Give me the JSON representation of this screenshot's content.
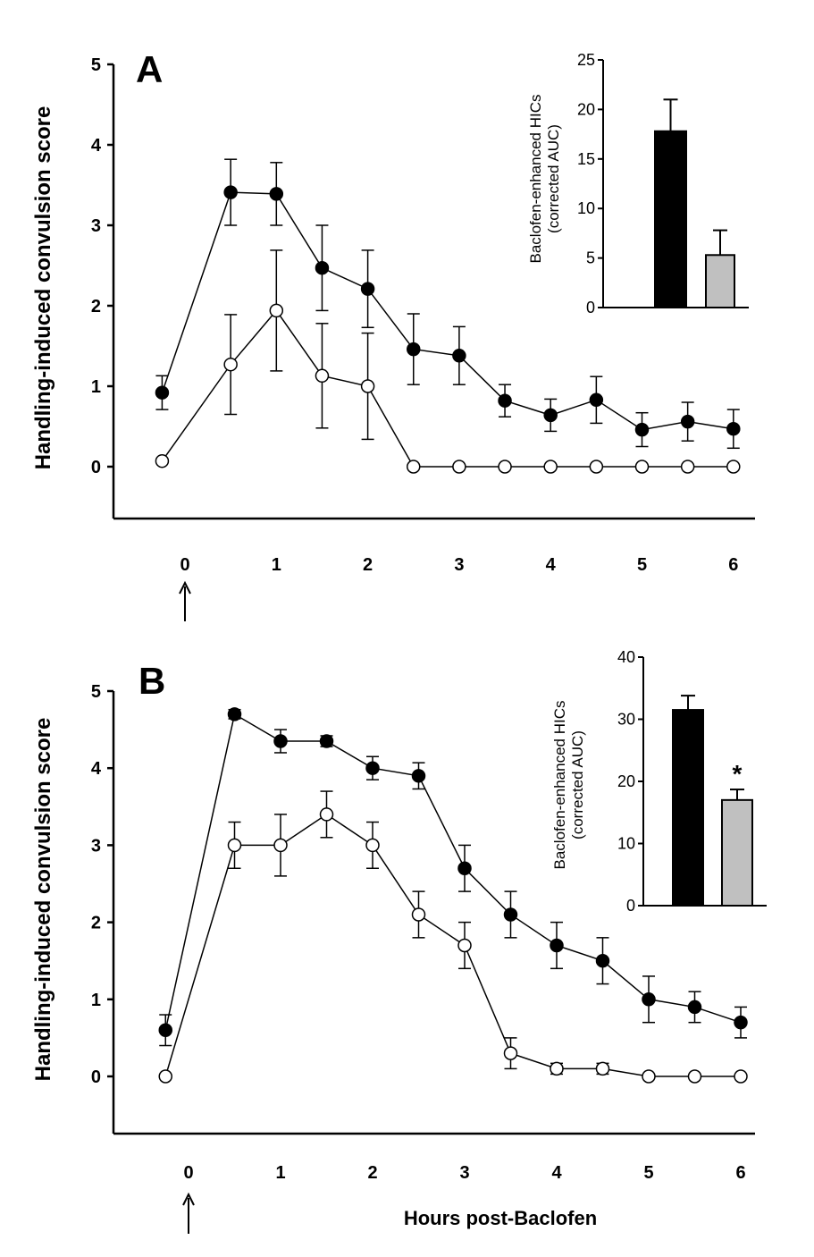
{
  "chart_data": [
    {
      "panel": "A",
      "type": "line",
      "title": "",
      "ylabel": "Handling-induced convulsion score",
      "xlabel": "",
      "ylim": [
        0,
        5
      ],
      "yticks": [
        "0",
        "1",
        "2",
        "3",
        "4",
        "5"
      ],
      "xticks": [
        "0",
        "1",
        "2",
        "3",
        "4",
        "5",
        "6"
      ],
      "x": [
        -0.25,
        0.5,
        1,
        1.5,
        2,
        2.5,
        3,
        3.5,
        4,
        4.5,
        5,
        5.5,
        6
      ],
      "series": [
        {
          "name": "filled",
          "marker": "filled-circle",
          "values": [
            0.92,
            3.41,
            3.39,
            2.47,
            2.21,
            1.46,
            1.38,
            0.82,
            0.64,
            0.83,
            0.46,
            0.56,
            0.47
          ],
          "errors": [
            0.21,
            0.41,
            0.39,
            0.53,
            0.48,
            0.44,
            0.36,
            0.2,
            0.2,
            0.29,
            0.21,
            0.24,
            0.24
          ]
        },
        {
          "name": "open",
          "marker": "open-circle",
          "values": [
            0.07,
            1.27,
            1.94,
            1.13,
            1.0,
            0,
            0,
            0,
            0,
            0,
            0,
            0,
            0
          ],
          "errors": [
            0,
            0.62,
            0.75,
            0.65,
            0.66,
            0,
            0,
            0,
            0,
            0,
            0,
            0,
            0
          ]
        }
      ],
      "arrow_at": 0,
      "inset": {
        "type": "bar",
        "ylabel_line1": "Baclofen-enhanced HICs",
        "ylabel_line2": "(corrected AUC)",
        "ylim": [
          0,
          25
        ],
        "yticks": [
          "0",
          "5",
          "10",
          "15",
          "20",
          "25"
        ],
        "bars": [
          {
            "name": "filled",
            "value": 17.8,
            "error": 3.2,
            "color": "#000000"
          },
          {
            "name": "open",
            "value": 5.3,
            "error": 2.5,
            "color": "#c0c0c0"
          }
        ]
      }
    },
    {
      "panel": "B",
      "type": "line",
      "title": "",
      "ylabel": "Handling-induced convulsion score",
      "xlabel": "Hours post-Baclofen",
      "ylim": [
        0,
        5
      ],
      "yticks": [
        "0",
        "1",
        "2",
        "3",
        "4",
        "5"
      ],
      "xticks": [
        "0",
        "1",
        "2",
        "3",
        "4",
        "5",
        "6"
      ],
      "x": [
        -0.25,
        0.5,
        1,
        1.5,
        2,
        2.5,
        3,
        3.5,
        4,
        4.5,
        5,
        5.5,
        6
      ],
      "series": [
        {
          "name": "filled",
          "marker": "filled-circle",
          "values": [
            0.6,
            4.7,
            4.35,
            4.35,
            4.0,
            3.9,
            2.7,
            2.1,
            1.7,
            1.5,
            1.0,
            0.9,
            0.7
          ],
          "errors": [
            0.2,
            0.06,
            0.15,
            0.07,
            0.15,
            0.17,
            0.3,
            0.3,
            0.3,
            0.3,
            0.3,
            0.2,
            0.2
          ]
        },
        {
          "name": "open",
          "marker": "open-circle",
          "values": [
            0,
            3.0,
            3.0,
            3.4,
            3.0,
            2.1,
            1.7,
            0.3,
            0.1,
            0.1,
            0,
            0,
            0
          ],
          "errors": [
            0,
            0.3,
            0.4,
            0.3,
            0.3,
            0.3,
            0.3,
            0.2,
            0.07,
            0.07,
            0,
            0,
            0
          ]
        }
      ],
      "arrow_at": 0,
      "inset": {
        "type": "bar",
        "ylabel_line1": "Baclofen-enhanced HICs",
        "ylabel_line2": "(corrected AUC)",
        "ylim": [
          0,
          40
        ],
        "yticks": [
          "0",
          "10",
          "20",
          "30",
          "40"
        ],
        "bars": [
          {
            "name": "filled",
            "value": 31.5,
            "error": 2.3,
            "color": "#000000"
          },
          {
            "name": "open",
            "value": 17.0,
            "error": 1.7,
            "color": "#c0c0c0",
            "annotation": "*"
          }
        ]
      }
    }
  ]
}
